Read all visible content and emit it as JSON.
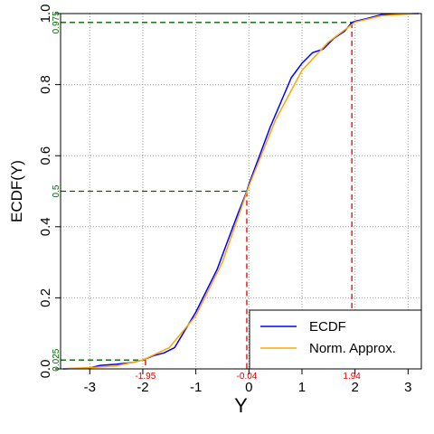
{
  "chart_data": {
    "type": "line",
    "xlabel": "Y",
    "ylabel": "ECDF(Y)",
    "xlim": [
      -3.55,
      3.25
    ],
    "ylim": [
      0,
      1
    ],
    "grid": true,
    "grid_style": "dotted",
    "x_ticks": [
      -3,
      -2,
      -1,
      0,
      1,
      2,
      3
    ],
    "x_tick_labels": [
      "-3",
      "-2",
      "-1",
      "0",
      "1",
      "2",
      "3"
    ],
    "y_ticks": [
      0,
      0.2,
      0.4,
      0.6,
      0.8,
      1
    ],
    "y_tick_labels": [
      "0.0",
      "0.2",
      "0.4",
      "0.6",
      "0.8",
      "1.0"
    ],
    "legend": {
      "position": "bottom-right",
      "entries": [
        {
          "label": "ECDF",
          "color": "#0000ff"
        },
        {
          "label": "Norm. Approx.",
          "color": "#ffa500"
        }
      ]
    },
    "series": [
      {
        "name": "ECDF",
        "color": "#0000ff",
        "x": [
          -3.5,
          -3.0,
          -2.8,
          -2.5,
          -2.2,
          -2.0,
          -1.8,
          -1.6,
          -1.4,
          -1.2,
          -1.0,
          -0.8,
          -0.6,
          -0.4,
          -0.2,
          -0.04,
          0.0,
          0.2,
          0.4,
          0.6,
          0.8,
          1.0,
          1.2,
          1.4,
          1.6,
          1.8,
          1.94,
          2.0,
          2.2,
          2.5,
          3.2
        ],
        "y": [
          0.0,
          0.003,
          0.01,
          0.013,
          0.018,
          0.025,
          0.037,
          0.045,
          0.06,
          0.11,
          0.16,
          0.22,
          0.28,
          0.36,
          0.44,
          0.5,
          0.52,
          0.6,
          0.68,
          0.75,
          0.82,
          0.86,
          0.89,
          0.9,
          0.93,
          0.95,
          0.975,
          0.978,
          0.985,
          0.997,
          1.0
        ]
      },
      {
        "name": "Norm. Approx.",
        "color": "#ffa500",
        "x": [
          -3.5,
          -3.0,
          -2.5,
          -2.0,
          -1.5,
          -1.0,
          -0.5,
          0.0,
          0.5,
          1.0,
          1.5,
          2.0,
          2.5,
          3.0,
          3.2
        ],
        "y": [
          0.0005,
          0.0035,
          0.0085,
          0.025,
          0.06,
          0.15,
          0.3,
          0.515,
          0.7,
          0.84,
          0.92,
          0.976,
          0.994,
          0.9987,
          0.9995
        ]
      }
    ],
    "reference_lines": [
      {
        "y": 0.975,
        "y_label": "0.975",
        "x": 1.94,
        "x_label": "1.94"
      },
      {
        "y": 0.5,
        "y_label": "0.5",
        "x": -0.04,
        "x_label": "-0.04"
      },
      {
        "y": 0.025,
        "y_label": "0.025",
        "x": -1.95,
        "x_label": "-1.95"
      }
    ],
    "colors": {
      "horizontal_reference": "#006400",
      "vertical_reference": "#dd0000",
      "grid": "#999999",
      "axis": "#000000"
    }
  }
}
